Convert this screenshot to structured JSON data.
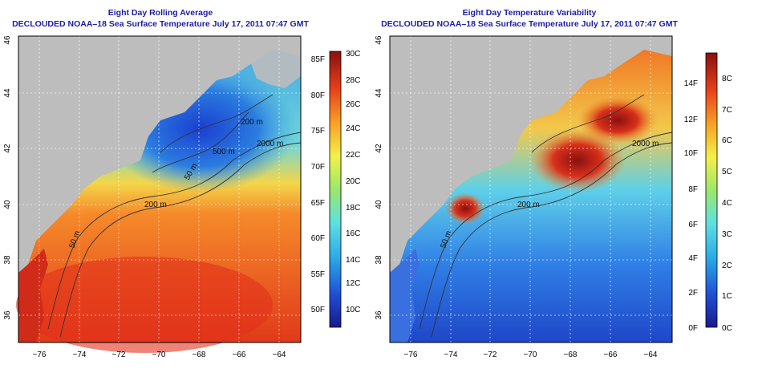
{
  "panel_left": {
    "title_line1": "Eight Day Rolling Average",
    "title_line2": "DECLOUDED NOAA–18 Sea Surface Temperature July 17, 2011 07:47 GMT",
    "colorbar_left_labels": [
      "85F",
      "80F",
      "75F",
      "70F",
      "65F",
      "60F",
      "55F",
      "50F"
    ],
    "colorbar_right_labels": [
      "30C",
      "28C",
      "26C",
      "24C",
      "22C",
      "20C",
      "18C",
      "16C",
      "14C",
      "12C",
      "10C"
    ],
    "contour_labels": [
      "50 m",
      "200 m",
      "2000 m",
      "500 m",
      "50 m",
      "200 m"
    ]
  },
  "panel_right": {
    "title_line1": "Eight Day Temperature Variability",
    "title_line2": "DECLOUDED NOAA–18 Sea Surface Temperature July 17, 2011 07:47 GMT",
    "colorbar_left_labels": [
      "14F",
      "12F",
      "10F",
      "8F",
      "6F",
      "4F",
      "2F",
      "0F"
    ],
    "colorbar_right_labels": [
      "8C",
      "7C",
      "6C",
      "5C",
      "4C",
      "3C",
      "2C",
      "1C",
      "0C"
    ],
    "contour_labels": [
      "50 m",
      "200 m",
      "2000 m",
      "50 m"
    ]
  },
  "axes": {
    "x_ticks": [
      "−76",
      "−74",
      "−72",
      "−70",
      "−68",
      "−66",
      "−64"
    ],
    "y_ticks": [
      "46",
      "44",
      "42",
      "40",
      "38",
      "36"
    ]
  },
  "colors": {
    "title": "#1c1ca8",
    "land": "#bdbdbd",
    "grid": "#ffffff",
    "contour": "#333333"
  }
}
